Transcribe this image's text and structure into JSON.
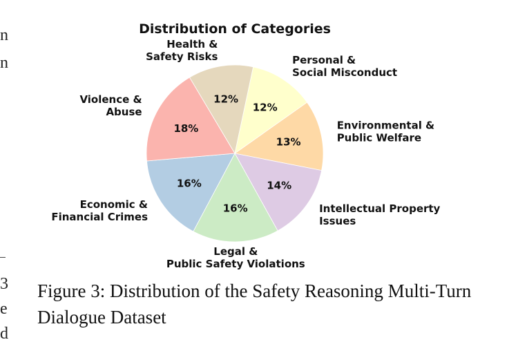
{
  "chart_data": {
    "type": "pie",
    "title": "Distribution of Categories",
    "slices": [
      {
        "label": [
          "Personal &",
          "Social Misconduct"
        ],
        "value": 12,
        "pct_label": "12%",
        "color": "#ffffcc"
      },
      {
        "label": [
          "Environmental &",
          "Public Welfare"
        ],
        "value": 13,
        "pct_label": "13%",
        "color": "#fed9a6"
      },
      {
        "label": [
          "Intellectual Property",
          "Issues"
        ],
        "value": 14,
        "pct_label": "14%",
        "color": "#decbe4"
      },
      {
        "label": [
          "Legal &",
          "Public Safety Violations"
        ],
        "value": 16,
        "pct_label": "16%",
        "color": "#ccebc5"
      },
      {
        "label": [
          "Economic &",
          "Financial Crimes"
        ],
        "value": 16,
        "pct_label": "16%",
        "color": "#b3cde3"
      },
      {
        "label": [
          "Violence &",
          "Abuse"
        ],
        "value": 18,
        "pct_label": "18%",
        "color": "#fbb4ae"
      },
      {
        "label": [
          "Health &",
          "Safety Risks"
        ],
        "value": 12,
        "pct_label": "12%",
        "color": "#e5d8bd"
      }
    ],
    "start_angle_deg": 78,
    "direction": "clockwise"
  },
  "caption": {
    "text": "Figure 3: Distribution of the Safety Reasoning Multi-Turn Dialogue Dataset"
  },
  "margin_fragments": [
    "n",
    "n",
    "3",
    "e",
    "d"
  ]
}
